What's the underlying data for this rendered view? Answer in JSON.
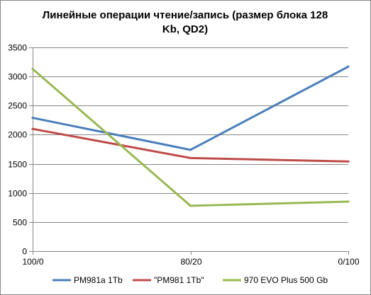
{
  "chart_data": {
    "type": "line",
    "title_lines": [
      "Линейные операции чтение/запись (размер блока 128",
      "Kb, QD2)"
    ],
    "categories": [
      "100/0",
      "80/20",
      "0/100"
    ],
    "series": [
      {
        "name": "PM981a 1Tb",
        "color": "#4a7ebb",
        "values": [
          2290,
          1740,
          3170
        ]
      },
      {
        "name": "\"PM981 1Tb\"",
        "color": "#be4b48",
        "values": [
          2100,
          1600,
          1540
        ]
      },
      {
        "name": "970 EVO Plus 500 Gb",
        "color": "#98b954",
        "values": [
          3130,
          780,
          850
        ]
      }
    ],
    "ylim": [
      0,
      3500
    ],
    "yticks": [
      "0",
      "500",
      "1000",
      "1500",
      "2000",
      "2500",
      "3000",
      "3500"
    ],
    "grid": true,
    "legend_position": "bottom"
  }
}
